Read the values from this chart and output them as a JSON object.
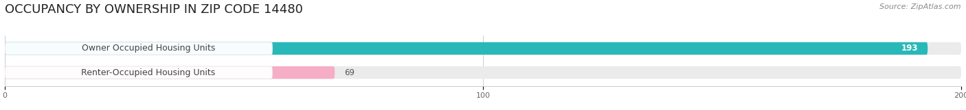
{
  "title": "OCCUPANCY BY OWNERSHIP IN ZIP CODE 14480",
  "source": "Source: ZipAtlas.com",
  "categories": [
    "Owner Occupied Housing Units",
    "Renter-Occupied Housing Units"
  ],
  "values": [
    193,
    69
  ],
  "bar_colors": [
    "#29b8b8",
    "#f5aec5"
  ],
  "bar_bg_color": "#ebebeb",
  "xlim": [
    0,
    200
  ],
  "xticks": [
    0,
    100,
    200
  ],
  "title_fontsize": 13,
  "source_fontsize": 8,
  "label_fontsize": 9,
  "value_fontsize": 8.5,
  "bar_height": 0.52,
  "background_color": "#ffffff"
}
